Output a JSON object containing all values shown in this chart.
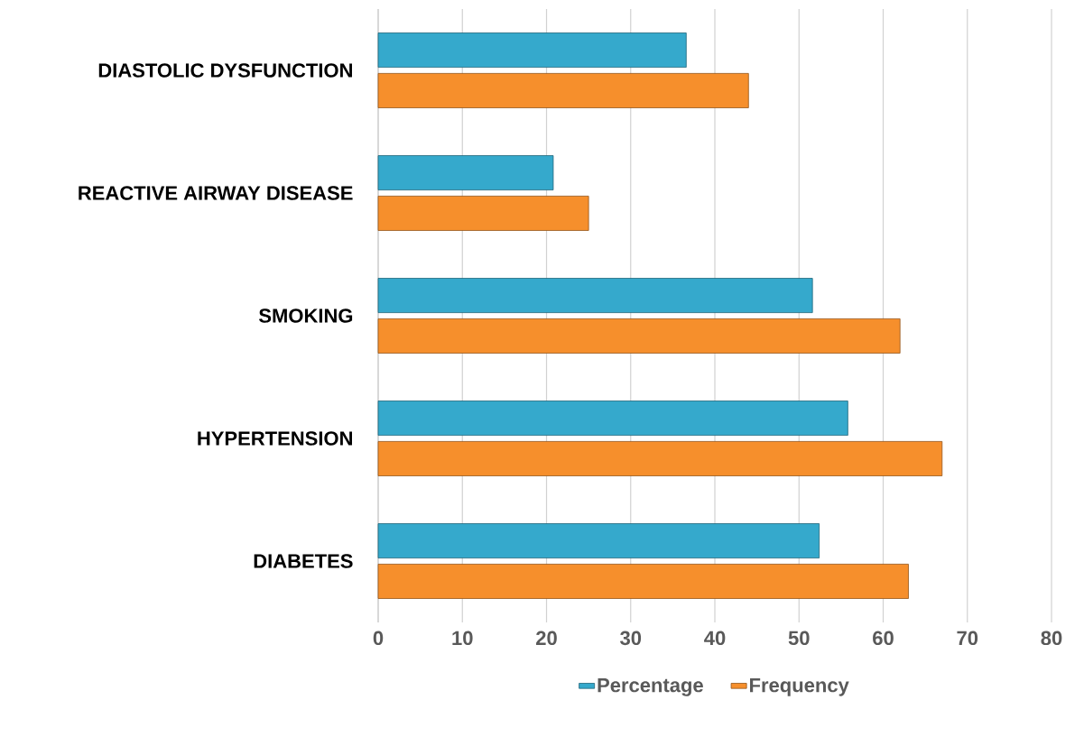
{
  "chart_data": {
    "type": "bar",
    "orientation": "horizontal",
    "categories": [
      "DIASTOLIC DYSFUNCTION",
      "REACTIVE AIRWAY DISEASE",
      "SMOKING",
      "HYPERTENSION",
      "DIABETES"
    ],
    "series": [
      {
        "name": "Percentage",
        "color": "#35a9cc",
        "values": [
          36.6,
          20.8,
          51.6,
          55.8,
          52.4
        ]
      },
      {
        "name": "Frequency",
        "color": "#f68f2c",
        "values": [
          44,
          25,
          62,
          67,
          63
        ]
      }
    ],
    "xlim": [
      0,
      80
    ],
    "xticks": [
      0,
      10,
      20,
      30,
      40,
      50,
      60,
      70,
      80
    ],
    "grid": "x",
    "legend": "bottom"
  }
}
